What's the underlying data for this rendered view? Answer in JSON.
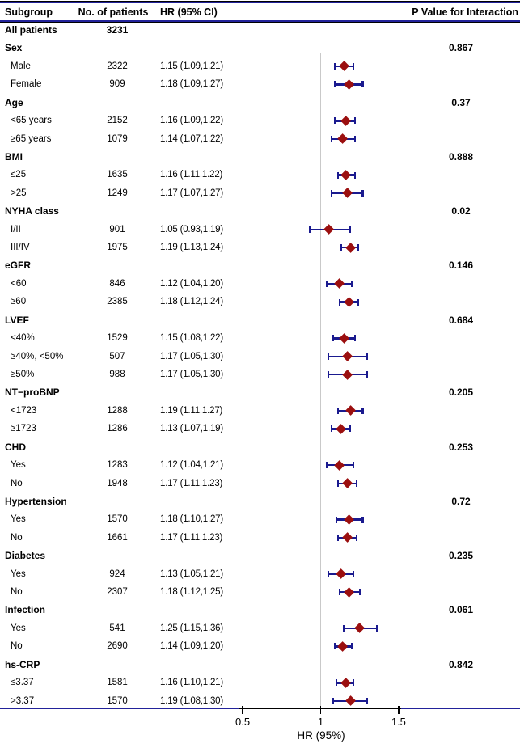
{
  "header": {
    "subgroup": "Subgroup",
    "patients": "No. of patients",
    "hr_ci": "HR (95% CI)",
    "p_value": "P Value for Interaction"
  },
  "axis": {
    "label": "HR (95%)",
    "ticks": [
      {
        "value": 0.5,
        "label": "0.5"
      },
      {
        "value": 1.0,
        "label": "1"
      },
      {
        "value": 1.5,
        "label": "1.5"
      }
    ],
    "reference_value": 1
  },
  "colors": {
    "rule_navy": "#22229a",
    "errorbar_navy": "#1a1a8f",
    "marker_red": "#9b0f0f",
    "refline_gray": "#c9c9c9",
    "axis_black": "#000000"
  },
  "chart_data": {
    "type": "forest",
    "xlabel": "HR (95%)",
    "x_axis_range": [
      0.48,
      1.52
    ],
    "reference_line": 1,
    "grid": false,
    "rows": [
      {
        "type": "all",
        "label": "All patients",
        "n": "3231"
      },
      {
        "type": "group",
        "label": "Sex",
        "p": "0.867"
      },
      {
        "type": "item",
        "label": "Male",
        "n": "2322",
        "hr": 1.15,
        "lo": 1.09,
        "hi": 1.21,
        "hr_text": "1.15 (1.09,1.21)"
      },
      {
        "type": "item",
        "label": "Female",
        "n": "909",
        "hr": 1.18,
        "lo": 1.09,
        "hi": 1.27,
        "hr_text": "1.18 (1.09,1.27)"
      },
      {
        "type": "group",
        "label": "Age",
        "p": "0.37"
      },
      {
        "type": "item",
        "label": "<65 years",
        "n": "2152",
        "hr": 1.16,
        "lo": 1.09,
        "hi": 1.22,
        "hr_text": "1.16 (1.09,1.22)"
      },
      {
        "type": "item",
        "label": "≥65 years",
        "n": "1079",
        "hr": 1.14,
        "lo": 1.07,
        "hi": 1.22,
        "hr_text": "1.14 (1.07,1.22)"
      },
      {
        "type": "group",
        "label": "BMI",
        "p": "0.888"
      },
      {
        "type": "item",
        "label": "≤25",
        "n": "1635",
        "hr": 1.16,
        "lo": 1.11,
        "hi": 1.22,
        "hr_text": "1.16 (1.11,1.22)"
      },
      {
        "type": "item",
        "label": ">25",
        "n": "1249",
        "hr": 1.17,
        "lo": 1.07,
        "hi": 1.27,
        "hr_text": "1.17 (1.07,1.27)"
      },
      {
        "type": "group",
        "label": "NYHA class",
        "p": "0.02"
      },
      {
        "type": "item",
        "label": "I/II",
        "n": "901",
        "hr": 1.05,
        "lo": 0.93,
        "hi": 1.19,
        "hr_text": "1.05 (0.93,1.19)"
      },
      {
        "type": "item",
        "label": "III/IV",
        "n": "1975",
        "hr": 1.19,
        "lo": 1.13,
        "hi": 1.24,
        "hr_text": "1.19 (1.13,1.24)"
      },
      {
        "type": "group",
        "label": "eGFR",
        "p": "0.146"
      },
      {
        "type": "item",
        "label": "<60",
        "n": "846",
        "hr": 1.12,
        "lo": 1.04,
        "hi": 1.2,
        "hr_text": "1.12 (1.04,1.20)"
      },
      {
        "type": "item",
        "label": "≥60",
        "n": "2385",
        "hr": 1.18,
        "lo": 1.12,
        "hi": 1.24,
        "hr_text": "1.18 (1.12,1.24)"
      },
      {
        "type": "group",
        "label": "LVEF",
        "p": "0.684"
      },
      {
        "type": "item",
        "label": "<40%",
        "n": "1529",
        "hr": 1.15,
        "lo": 1.08,
        "hi": 1.22,
        "hr_text": "1.15 (1.08,1.22)"
      },
      {
        "type": "item",
        "label": "≥40%, <50%",
        "n": "507",
        "hr": 1.17,
        "lo": 1.05,
        "hi": 1.3,
        "hr_text": "1.17 (1.05,1.30)"
      },
      {
        "type": "item",
        "label": "≥50%",
        "n": "988",
        "hr": 1.17,
        "lo": 1.05,
        "hi": 1.3,
        "hr_text": "1.17 (1.05,1.30)"
      },
      {
        "type": "group",
        "label": "NT−proBNP",
        "p": "0.205"
      },
      {
        "type": "item",
        "label": "<1723",
        "n": "1288",
        "hr": 1.19,
        "lo": 1.11,
        "hi": 1.27,
        "hr_text": "1.19 (1.11,1.27)"
      },
      {
        "type": "item",
        "label": "≥1723",
        "n": "1286",
        "hr": 1.13,
        "lo": 1.07,
        "hi": 1.19,
        "hr_text": "1.13 (1.07,1.19)"
      },
      {
        "type": "group",
        "label": "CHD",
        "p": "0.253"
      },
      {
        "type": "item",
        "label": "Yes",
        "n": "1283",
        "hr": 1.12,
        "lo": 1.04,
        "hi": 1.21,
        "hr_text": "1.12 (1.04,1.21)"
      },
      {
        "type": "item",
        "label": "No",
        "n": "1948",
        "hr": 1.17,
        "lo": 1.11,
        "hi": 1.23,
        "hr_text": "1.17 (1.11,1.23)"
      },
      {
        "type": "group",
        "label": "Hypertension",
        "p": "0.72"
      },
      {
        "type": "item",
        "label": "Yes",
        "n": "1570",
        "hr": 1.18,
        "lo": 1.1,
        "hi": 1.27,
        "hr_text": "1.18 (1.10,1.27)"
      },
      {
        "type": "item",
        "label": "No",
        "n": "1661",
        "hr": 1.17,
        "lo": 1.11,
        "hi": 1.23,
        "hr_text": "1.17 (1.11,1.23)"
      },
      {
        "type": "group",
        "label": "Diabetes",
        "p": "0.235"
      },
      {
        "type": "item",
        "label": "Yes",
        "n": "924",
        "hr": 1.13,
        "lo": 1.05,
        "hi": 1.21,
        "hr_text": "1.13 (1.05,1.21)"
      },
      {
        "type": "item",
        "label": "No",
        "n": "2307",
        "hr": 1.18,
        "lo": 1.12,
        "hi": 1.25,
        "hr_text": "1.18 (1.12,1.25)"
      },
      {
        "type": "group",
        "label": "Infection",
        "p": "0.061"
      },
      {
        "type": "item",
        "label": "Yes",
        "n": "541",
        "hr": 1.25,
        "lo": 1.15,
        "hi": 1.36,
        "hr_text": "1.25 (1.15,1.36)"
      },
      {
        "type": "item",
        "label": "No",
        "n": "2690",
        "hr": 1.14,
        "lo": 1.09,
        "hi": 1.2,
        "hr_text": "1.14 (1.09,1.20)"
      },
      {
        "type": "group",
        "label": "hs-CRP",
        "p": "0.842"
      },
      {
        "type": "item",
        "label": "≤3.37",
        "n": "1581",
        "hr": 1.16,
        "lo": 1.1,
        "hi": 1.21,
        "hr_text": "1.16 (1.10,1.21)"
      },
      {
        "type": "item",
        "label": ">3.37",
        "n": "1570",
        "hr": 1.19,
        "lo": 1.08,
        "hi": 1.3,
        "hr_text": "1.19 (1.08,1.30)"
      }
    ]
  }
}
